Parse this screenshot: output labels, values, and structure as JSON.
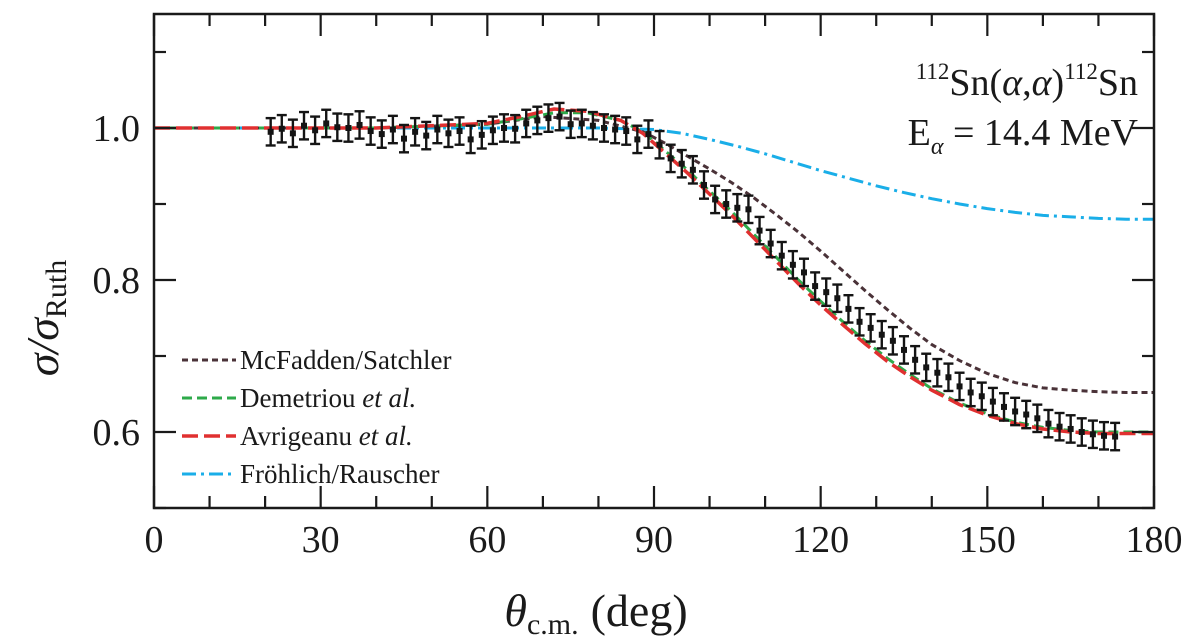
{
  "chart_data": {
    "type": "scatter",
    "title": "",
    "xlabel": {
      "symbol": "θ",
      "sub": "c.m.",
      "unit": "(deg)"
    },
    "ylabel": {
      "symbol": "σ/σ",
      "sub": "Ruth"
    },
    "xlim": [
      0,
      180
    ],
    "ylim": [
      0.5,
      1.15
    ],
    "x_ticks": [
      0,
      30,
      60,
      90,
      120,
      150,
      180
    ],
    "y_ticks": [
      0.6,
      0.8,
      1.0
    ],
    "x_tick_labels": [
      "0",
      "30",
      "60",
      "90",
      "120",
      "150",
      "180"
    ],
    "y_tick_labels": [
      "0.6",
      "0.8",
      "1.0"
    ],
    "grid": false,
    "legend_position": "bottom-left",
    "annotation": {
      "reaction": {
        "pre_sup": "112",
        "a": "Sn(",
        "alpha1": "α",
        "comma": ",",
        "alpha2": "α",
        "b": ")",
        "post_sup": "112",
        "c": "Sn"
      },
      "energy": {
        "e": "E",
        "sub": "α",
        "rest": " = 14.4 MeV"
      }
    },
    "legend": [
      {
        "name": "McFadden/Satchler",
        "italic": ""
      },
      {
        "name": "Demetriou ",
        "italic": "et al."
      },
      {
        "name": "Avrigeanu ",
        "italic": "et al."
      },
      {
        "name": "Fröhlich/Rauscher",
        "italic": ""
      }
    ],
    "series": [
      {
        "name": "McFadden/Satchler",
        "color": "#4a3238",
        "dash": "short-dash",
        "x": [
          0,
          20,
          40,
          60,
          70,
          80,
          88,
          92,
          96,
          100,
          104,
          108,
          112,
          116,
          120,
          124,
          128,
          132,
          136,
          140,
          145,
          150,
          155,
          160,
          165,
          170,
          175,
          180
        ],
        "y": [
          1.0,
          1.0,
          1.0,
          1.005,
          1.015,
          1.01,
          0.995,
          0.98,
          0.963,
          0.946,
          0.928,
          0.908,
          0.886,
          0.863,
          0.838,
          0.812,
          0.786,
          0.761,
          0.737,
          0.715,
          0.694,
          0.677,
          0.665,
          0.658,
          0.655,
          0.653,
          0.652,
          0.652
        ]
      },
      {
        "name": "Demetriou et al.",
        "color": "#2eaa4a",
        "dash": "dash",
        "x": [
          0,
          20,
          40,
          60,
          66,
          72,
          78,
          84,
          88,
          92,
          96,
          100,
          104,
          108,
          112,
          116,
          120,
          124,
          128,
          132,
          136,
          140,
          145,
          150,
          155,
          160,
          165,
          170,
          175,
          180
        ],
        "y": [
          1.0,
          1.0,
          1.0,
          1.005,
          1.012,
          1.02,
          1.02,
          1.01,
          0.995,
          0.97,
          0.945,
          0.917,
          0.89,
          0.86,
          0.83,
          0.8,
          0.772,
          0.745,
          0.72,
          0.697,
          0.676,
          0.657,
          0.638,
          0.624,
          0.613,
          0.606,
          0.602,
          0.6,
          0.6,
          0.6
        ]
      },
      {
        "name": "Avrigeanu et al.",
        "color": "#e03030",
        "dash": "long-dash",
        "x": [
          0,
          20,
          40,
          60,
          66,
          72,
          78,
          84,
          88,
          92,
          96,
          100,
          104,
          108,
          112,
          116,
          120,
          124,
          128,
          132,
          136,
          140,
          145,
          150,
          155,
          160,
          165,
          170,
          175,
          180
        ],
        "y": [
          1.0,
          1.0,
          1.0,
          1.006,
          1.015,
          1.025,
          1.022,
          1.01,
          0.993,
          0.967,
          0.941,
          0.913,
          0.885,
          0.855,
          0.825,
          0.795,
          0.767,
          0.741,
          0.716,
          0.693,
          0.673,
          0.655,
          0.636,
          0.622,
          0.611,
          0.604,
          0.6,
          0.598,
          0.598,
          0.598
        ]
      },
      {
        "name": "Fröhlich/Rauscher",
        "color": "#1aaee8",
        "dash": "dash-dot",
        "x": [
          0,
          20,
          40,
          60,
          80,
          90,
          95,
          100,
          105,
          110,
          115,
          120,
          125,
          130,
          135,
          140,
          145,
          150,
          155,
          160,
          165,
          170,
          175,
          180
        ],
        "y": [
          1.0,
          1.0,
          1.0,
          1.0,
          1.0,
          0.998,
          0.993,
          0.985,
          0.976,
          0.966,
          0.955,
          0.944,
          0.934,
          0.924,
          0.915,
          0.907,
          0.9,
          0.894,
          0.889,
          0.885,
          0.883,
          0.881,
          0.88,
          0.88
        ]
      },
      {
        "name": "data",
        "color": "#141414",
        "marker": "error-bar",
        "points": [
          [
            21,
            0.995,
            0.018
          ],
          [
            23,
            0.999,
            0.018
          ],
          [
            25,
            0.993,
            0.018
          ],
          [
            27,
            1.003,
            0.018
          ],
          [
            29,
            0.997,
            0.018
          ],
          [
            31,
            1.006,
            0.018
          ],
          [
            33,
            1.001,
            0.018
          ],
          [
            35,
            1.0,
            0.018
          ],
          [
            37,
            1.004,
            0.018
          ],
          [
            39,
            0.996,
            0.018
          ],
          [
            41,
            0.992,
            0.018
          ],
          [
            43,
            0.998,
            0.018
          ],
          [
            45,
            0.986,
            0.018
          ],
          [
            47,
            0.995,
            0.018
          ],
          [
            49,
            0.99,
            0.018
          ],
          [
            51,
            0.998,
            0.018
          ],
          [
            53,
            0.993,
            0.018
          ],
          [
            55,
            0.996,
            0.018
          ],
          [
            57,
            0.985,
            0.018
          ],
          [
            59,
            0.991,
            0.018
          ],
          [
            61,
            0.997,
            0.018
          ],
          [
            63,
            1.0,
            0.018
          ],
          [
            65,
            0.999,
            0.018
          ],
          [
            67,
            1.006,
            0.018
          ],
          [
            69,
            1.01,
            0.018
          ],
          [
            71,
            1.013,
            0.018
          ],
          [
            73,
            1.015,
            0.018
          ],
          [
            75,
            1.005,
            0.018
          ],
          [
            77,
            1.006,
            0.018
          ],
          [
            79,
            1.003,
            0.018
          ],
          [
            81,
            1.0,
            0.018
          ],
          [
            83,
            0.998,
            0.018
          ],
          [
            85,
            0.996,
            0.018
          ],
          [
            87,
            0.985,
            0.018
          ],
          [
            89,
            0.992,
            0.018
          ],
          [
            91,
            0.978,
            0.018
          ],
          [
            93,
            0.96,
            0.018
          ],
          [
            95,
            0.953,
            0.018
          ],
          [
            97,
            0.945,
            0.018
          ],
          [
            99,
            0.925,
            0.018
          ],
          [
            101,
            0.906,
            0.018
          ],
          [
            103,
            0.9,
            0.018
          ],
          [
            105,
            0.895,
            0.018
          ],
          [
            107,
            0.893,
            0.018
          ],
          [
            109,
            0.865,
            0.018
          ],
          [
            111,
            0.848,
            0.018
          ],
          [
            113,
            0.832,
            0.018
          ],
          [
            115,
            0.82,
            0.018
          ],
          [
            117,
            0.81,
            0.018
          ],
          [
            119,
            0.792,
            0.018
          ],
          [
            121,
            0.784,
            0.018
          ],
          [
            123,
            0.776,
            0.018
          ],
          [
            125,
            0.762,
            0.018
          ],
          [
            127,
            0.745,
            0.018
          ],
          [
            129,
            0.737,
            0.018
          ],
          [
            131,
            0.728,
            0.018
          ],
          [
            133,
            0.72,
            0.018
          ],
          [
            135,
            0.708,
            0.018
          ],
          [
            137,
            0.695,
            0.018
          ],
          [
            139,
            0.685,
            0.018
          ],
          [
            141,
            0.678,
            0.018
          ],
          [
            143,
            0.672,
            0.018
          ],
          [
            145,
            0.66,
            0.018
          ],
          [
            147,
            0.652,
            0.018
          ],
          [
            149,
            0.647,
            0.018
          ],
          [
            151,
            0.64,
            0.018
          ],
          [
            153,
            0.633,
            0.018
          ],
          [
            155,
            0.627,
            0.018
          ],
          [
            157,
            0.623,
            0.018
          ],
          [
            159,
            0.618,
            0.018
          ],
          [
            161,
            0.611,
            0.018
          ],
          [
            163,
            0.607,
            0.018
          ],
          [
            165,
            0.604,
            0.018
          ],
          [
            167,
            0.6,
            0.018
          ],
          [
            169,
            0.597,
            0.018
          ],
          [
            171,
            0.595,
            0.018
          ],
          [
            173,
            0.594,
            0.018
          ]
        ]
      }
    ]
  }
}
